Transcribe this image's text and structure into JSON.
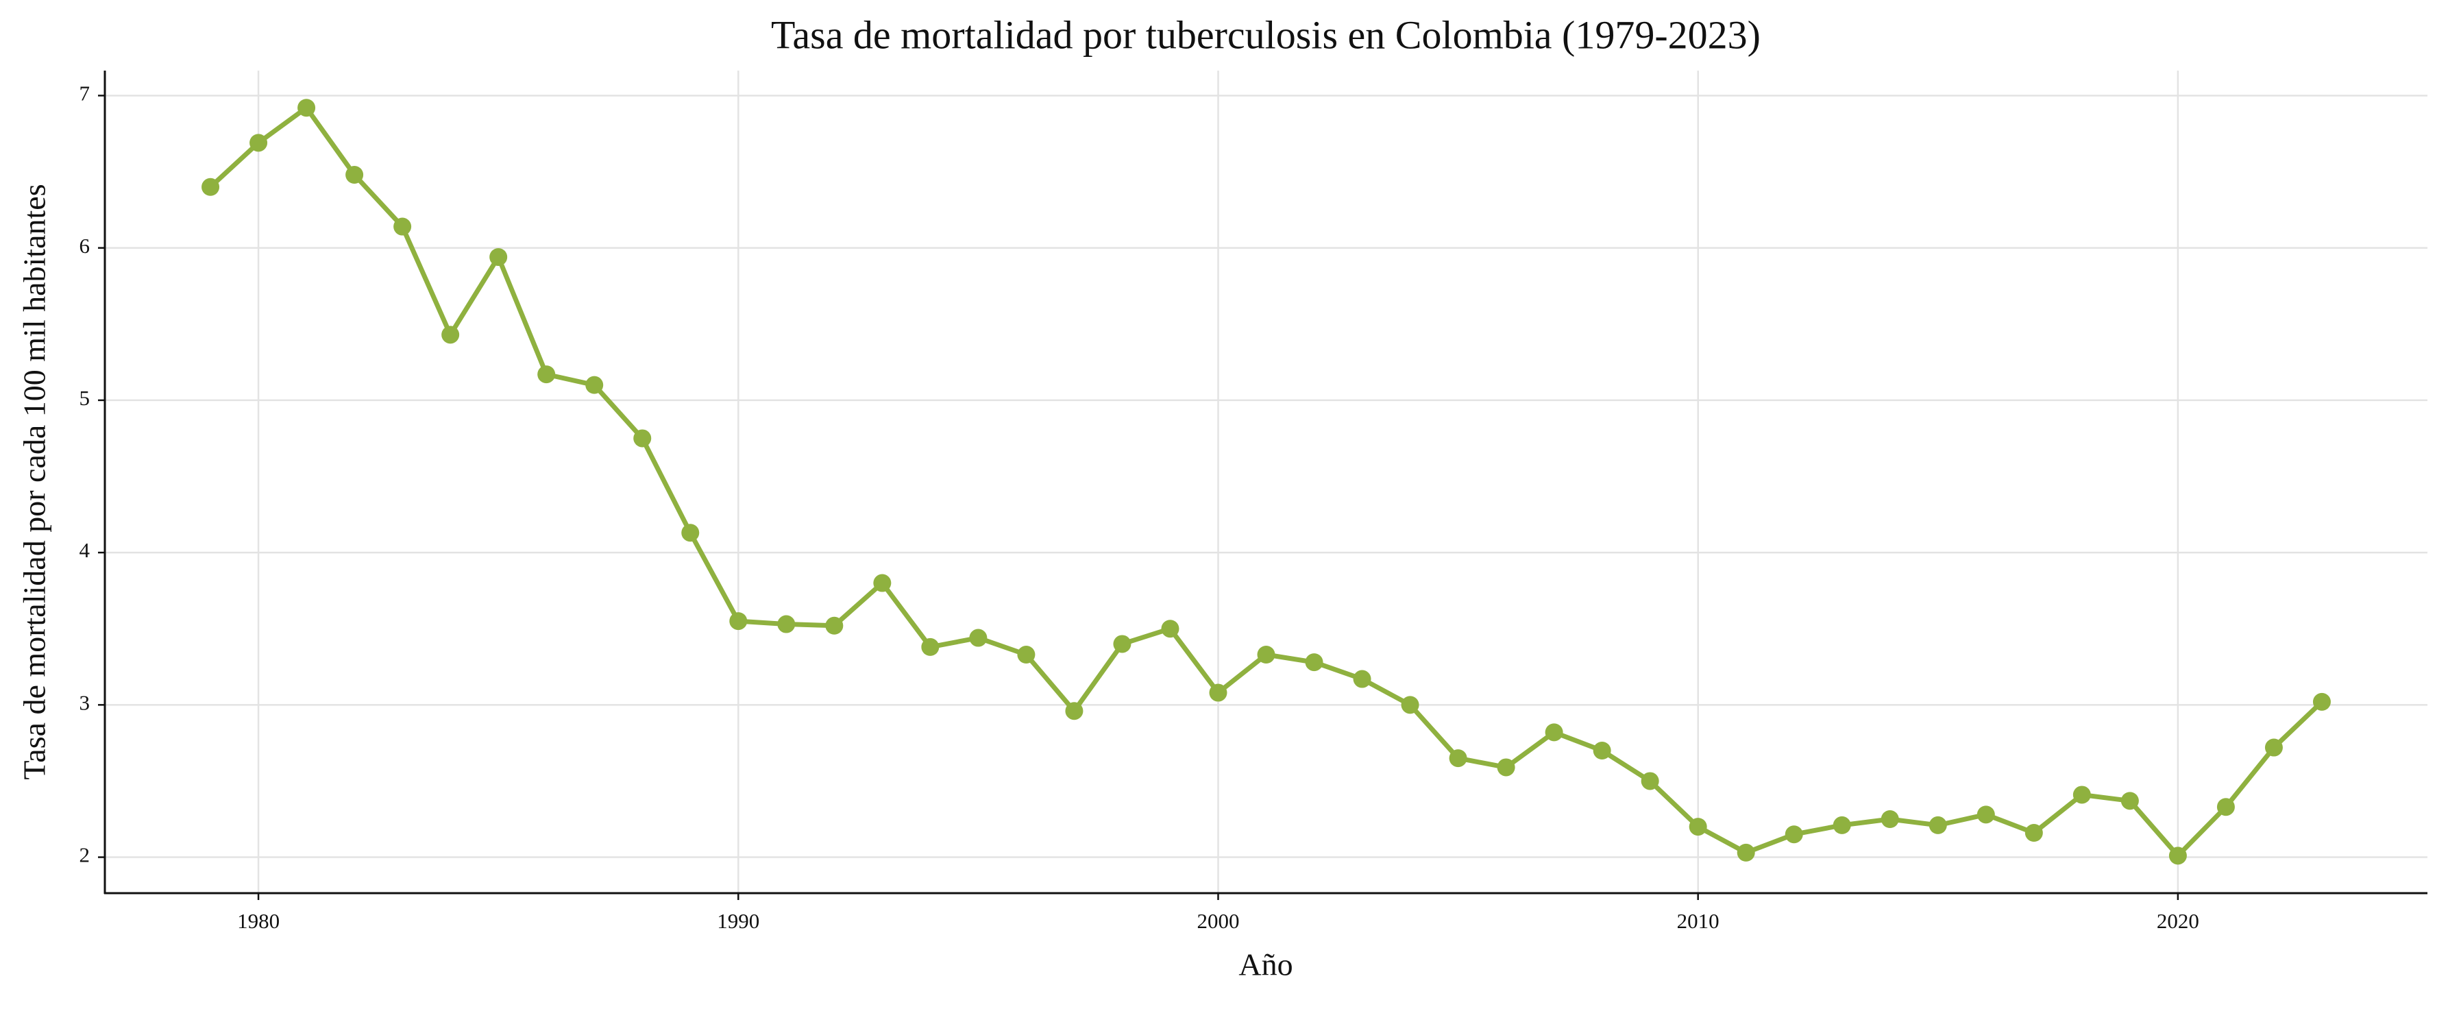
{
  "chart_data": {
    "type": "line",
    "title": "Tasa de mortalidad por tuberculosis en Colombia (1979-2023)",
    "x_label": "Año",
    "y_label": "Tasa de mortalidad por cada 100 mil habitantes",
    "x": [
      1979,
      1980,
      1981,
      1982,
      1983,
      1984,
      1985,
      1986,
      1987,
      1988,
      1989,
      1990,
      1991,
      1992,
      1993,
      1994,
      1995,
      1996,
      1997,
      1998,
      1999,
      2000,
      2001,
      2002,
      2003,
      2004,
      2005,
      2006,
      2007,
      2008,
      2009,
      2010,
      2011,
      2012,
      2013,
      2014,
      2015,
      2016,
      2017,
      2018,
      2019,
      2020,
      2021,
      2022,
      2023
    ],
    "series": [
      {
        "name": "Tasa de mortalidad",
        "color": "#8fb13f",
        "values": [
          6.4,
          6.69,
          6.92,
          6.48,
          6.14,
          5.43,
          5.94,
          5.17,
          5.1,
          4.75,
          4.13,
          3.55,
          3.53,
          3.52,
          3.8,
          3.38,
          3.44,
          3.33,
          2.96,
          3.4,
          3.5,
          3.08,
          3.33,
          3.28,
          3.17,
          3.0,
          2.65,
          2.59,
          2.82,
          2.7,
          2.5,
          2.2,
          2.03,
          2.15,
          2.21,
          2.25,
          2.21,
          2.28,
          2.16,
          2.41,
          2.37,
          2.01,
          2.33,
          2.72,
          3.02
        ]
      }
    ],
    "xlim": [
      1976.8,
      2025.2
    ],
    "ylim": [
      1.764,
      7.164
    ],
    "xticks": [
      1980,
      1990,
      2000,
      2010,
      2020
    ],
    "yticks": [
      2,
      3,
      4,
      5,
      6,
      7
    ],
    "grid": true
  }
}
